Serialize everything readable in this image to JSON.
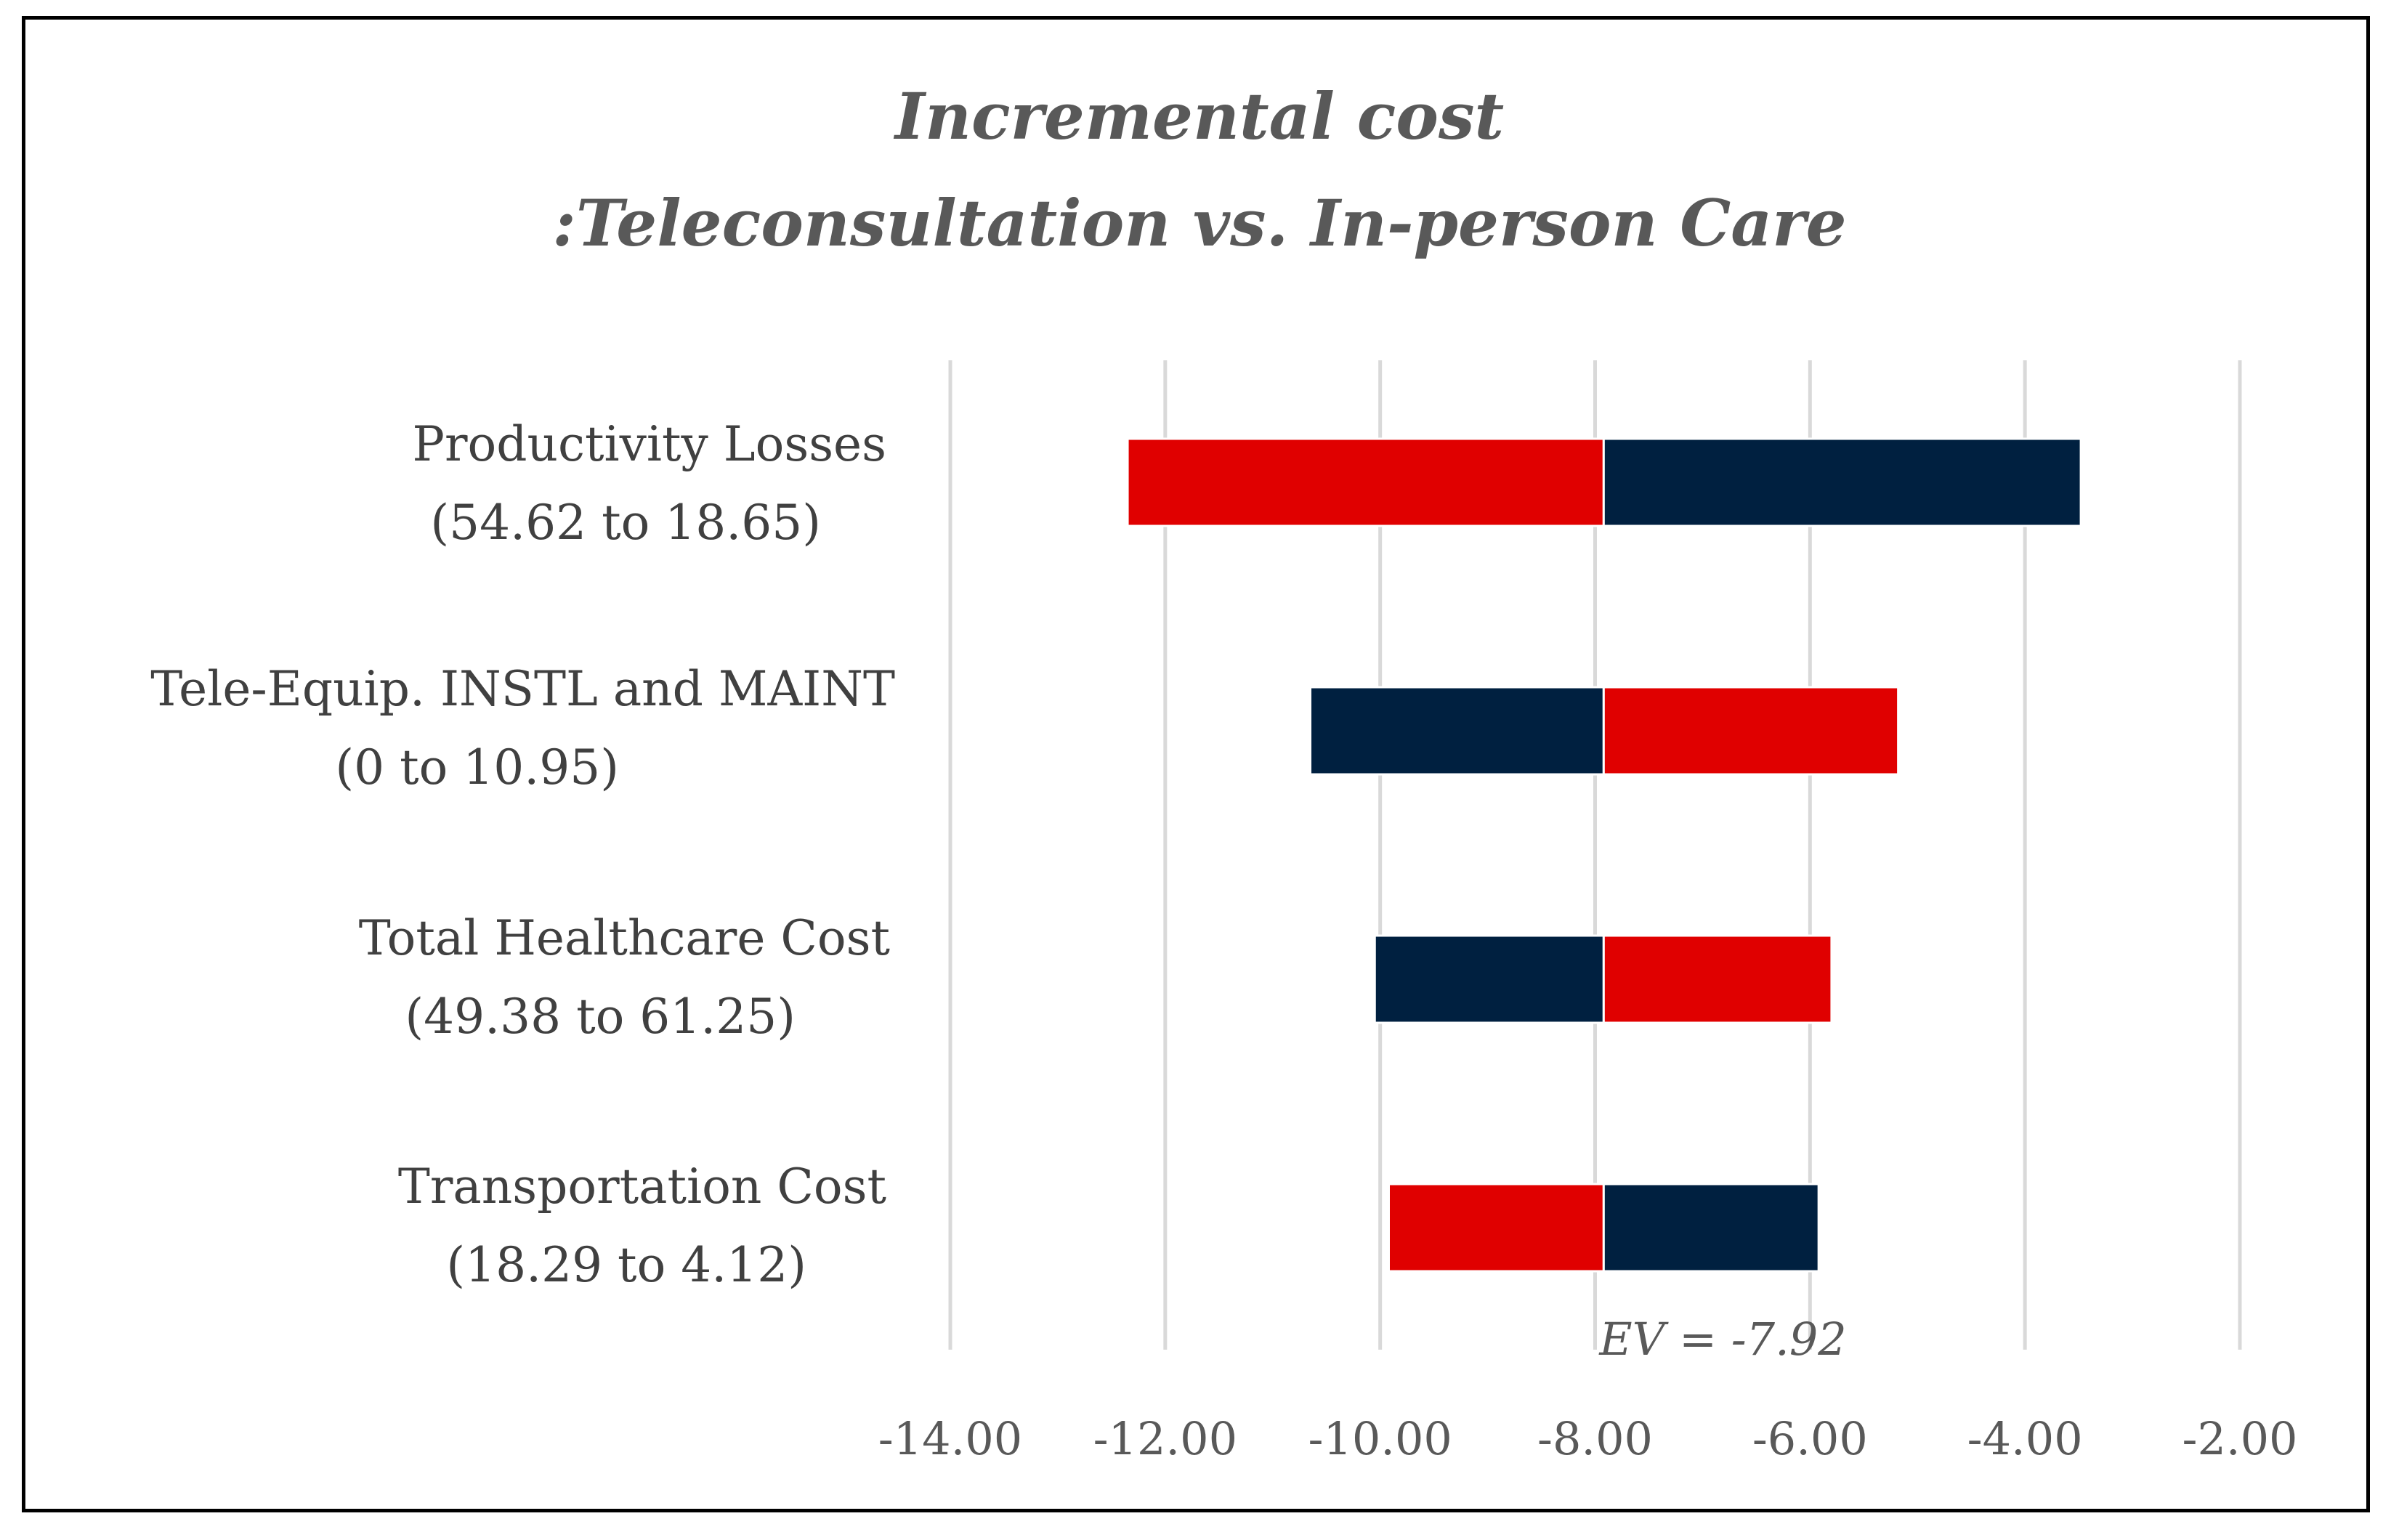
{
  "chart_data": {
    "type": "tornado",
    "title": [
      "Incremental cost",
      ":Teleconsultation vs. In-person Care"
    ],
    "xlim": [
      -14,
      -2
    ],
    "ticks": [
      -14,
      -12,
      -10,
      -8,
      -6,
      -4,
      -2
    ],
    "tick_labels": [
      "-14.00",
      "-12.00",
      "-10.00",
      "-8.00",
      "-6.00",
      "-4.00",
      "-2.00"
    ],
    "base_value": -7.92,
    "ev_label": "EV = -7.92",
    "colors": {
      "red": "#e00000",
      "navy": "#002040"
    },
    "rows": [
      {
        "name": "Productivity Losses",
        "range_label": "(54.62 to 18.65)",
        "bars": [
          {
            "from": -12.35,
            "to": -7.92,
            "color": "red"
          },
          {
            "from": -7.92,
            "to": -3.48,
            "color": "navy"
          }
        ]
      },
      {
        "name": "Tele-Equip. INSTL and MAINT",
        "range_label": "(0 to 10.95)",
        "bars": [
          {
            "from": -10.65,
            "to": -7.92,
            "color": "navy"
          },
          {
            "from": -7.92,
            "to": -5.18,
            "color": "red"
          }
        ]
      },
      {
        "name": "Total Healthcare Cost",
        "range_label": "(49.38 to 61.25)",
        "bars": [
          {
            "from": -10.05,
            "to": -7.92,
            "color": "navy"
          },
          {
            "from": -7.92,
            "to": -5.8,
            "color": "red"
          }
        ]
      },
      {
        "name": "Transportation Cost",
        "range_label": "(18.29 to 4.12)",
        "bars": [
          {
            "from": -9.92,
            "to": -7.92,
            "color": "red"
          },
          {
            "from": -7.92,
            "to": -5.92,
            "color": "navy"
          }
        ]
      }
    ]
  }
}
